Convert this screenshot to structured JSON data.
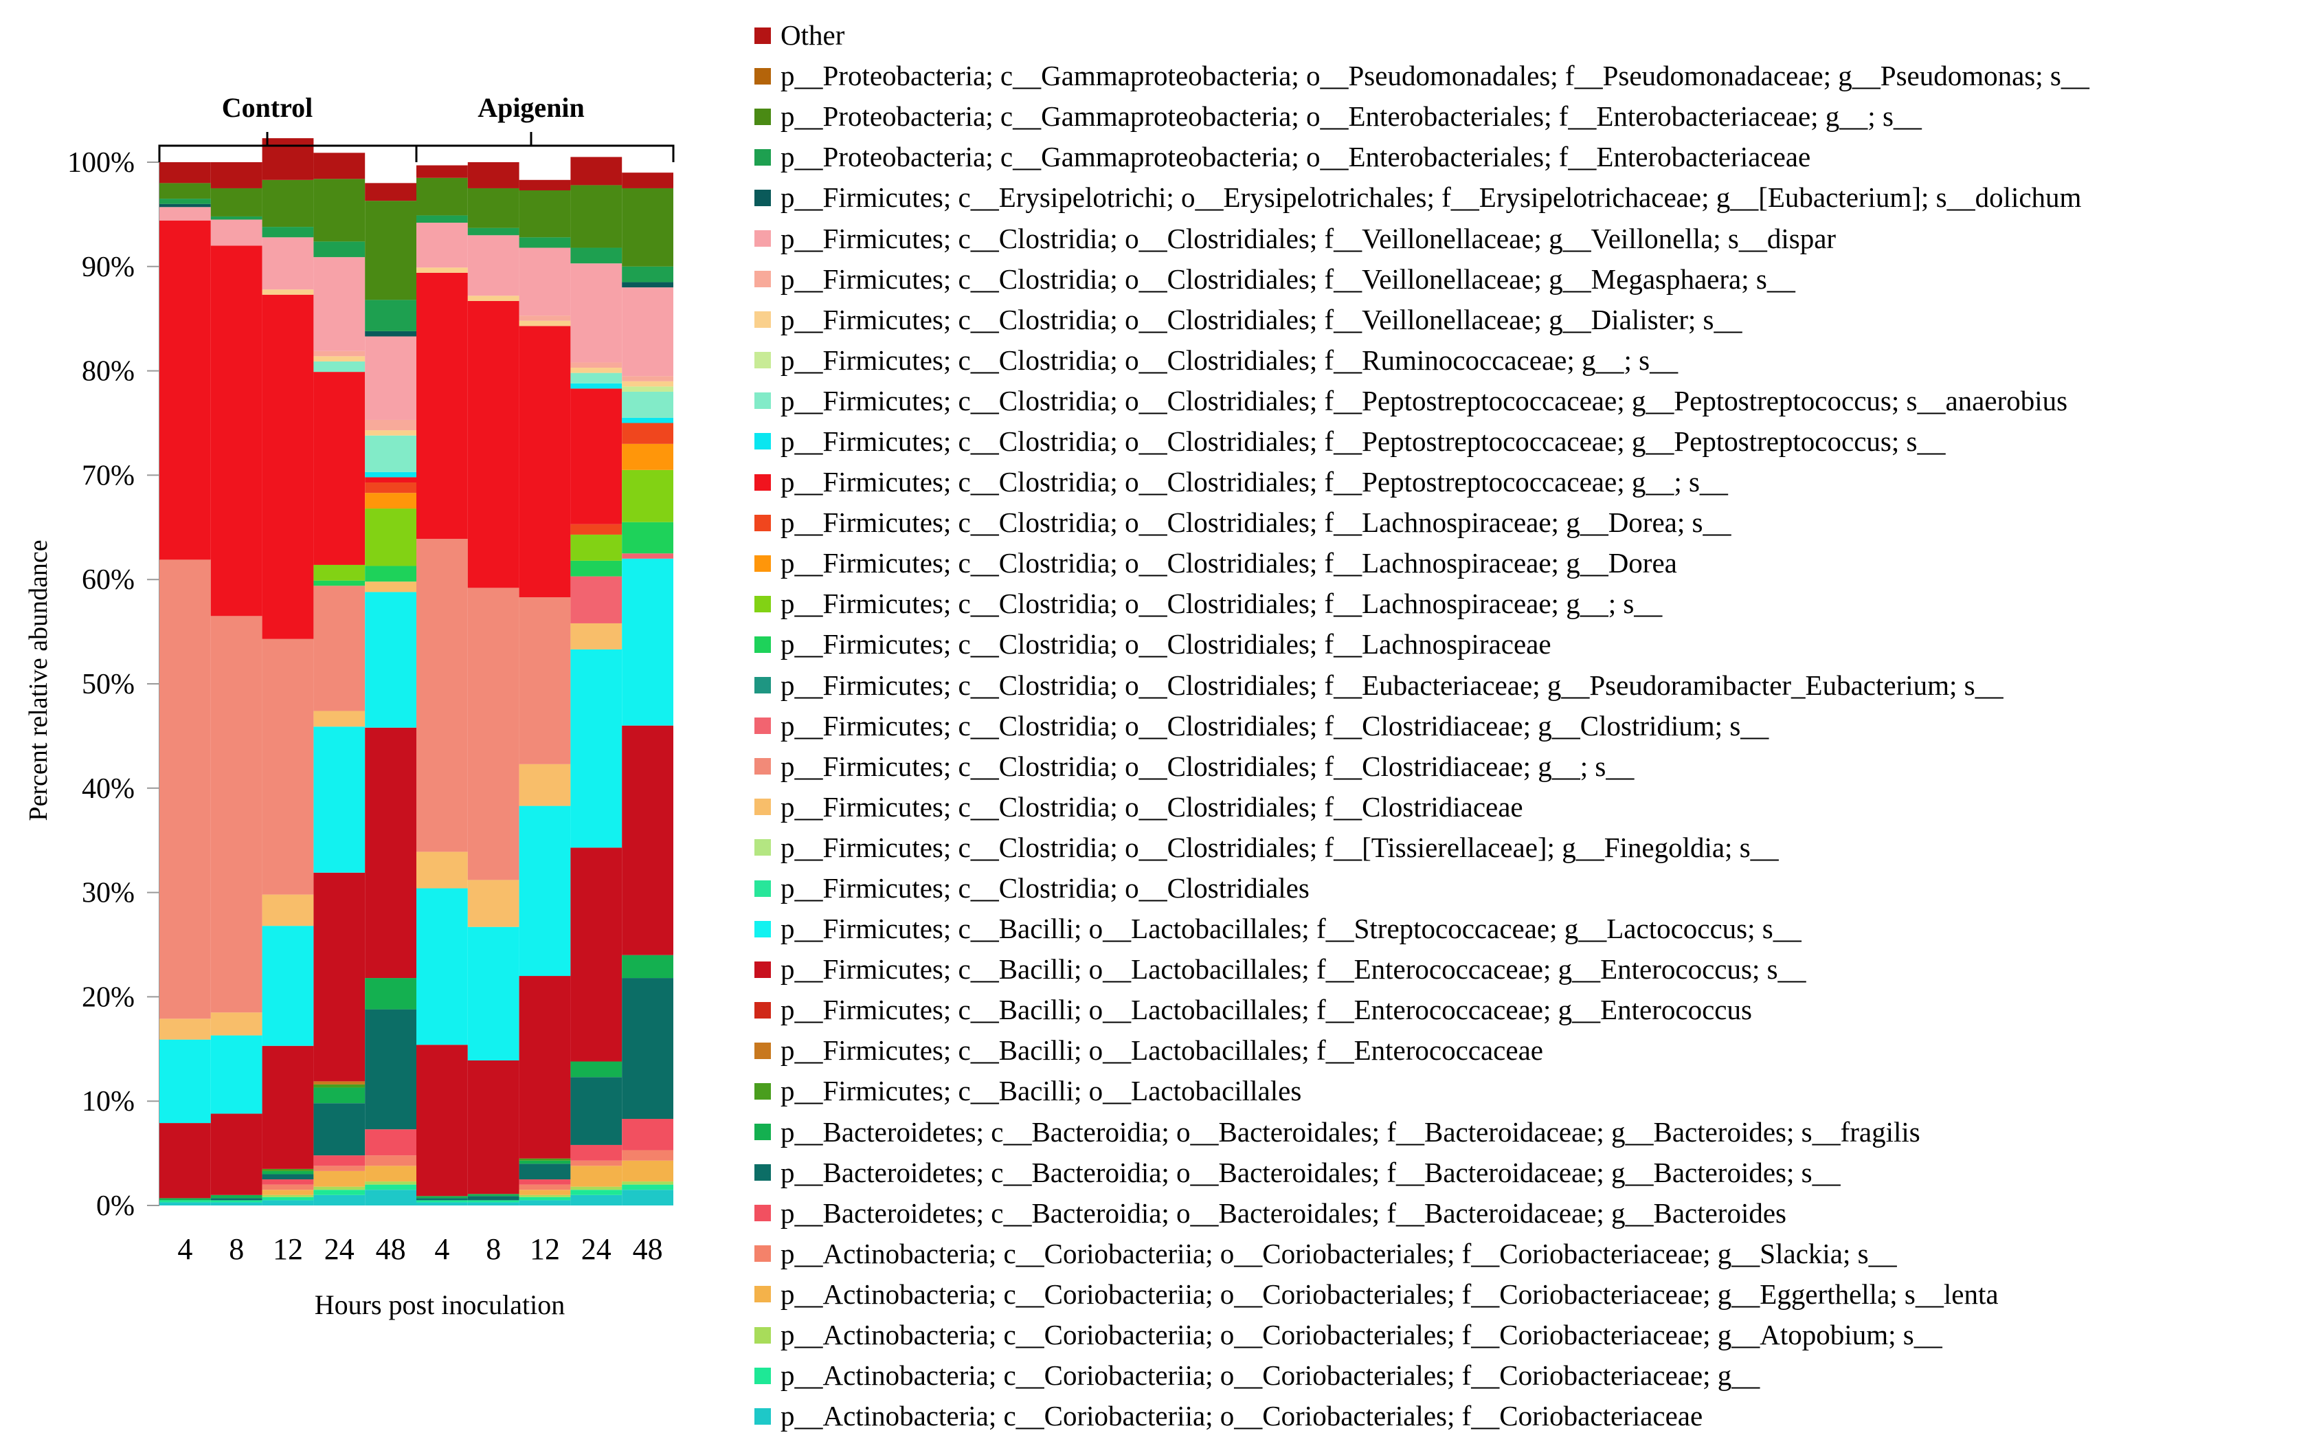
{
  "chart_data": {
    "type": "bar",
    "stacked": true,
    "ylabel": "Percent relative abundance",
    "xlabel": "Hours post inoculation",
    "ylim": [
      0,
      100
    ],
    "yticks": [
      "0%",
      "10%",
      "20%",
      "30%",
      "40%",
      "50%",
      "60%",
      "70%",
      "80%",
      "90%",
      "100%"
    ],
    "groups": [
      {
        "label": "Control",
        "categories": [
          "4",
          "8",
          "12",
          "24",
          "48"
        ]
      },
      {
        "label": "Apigenin",
        "categories": [
          "4",
          "8",
          "12",
          "24",
          "48"
        ]
      }
    ],
    "categories": [
      "4",
      "8",
      "12",
      "24",
      "48",
      "4",
      "8",
      "12",
      "24",
      "48"
    ],
    "legend_position": "right",
    "series": [
      {
        "name": "p__Actinobacteria; c__Coriobacteriia; o__Coriobacteriales; f__Coriobacteriaceae",
        "color": "#1ec8c8",
        "values": [
          0.3,
          0.3,
          0.5,
          1.0,
          1.5,
          0.3,
          0.3,
          0.5,
          1.0,
          1.5
        ]
      },
      {
        "name": "p__Actinobacteria; c__Coriobacteriia; o__Coriobacteriales; f__Coriobacteriaceae; g__",
        "color": "#1ee896",
        "values": [
          0.2,
          0.2,
          0.3,
          0.5,
          0.5,
          0.2,
          0.2,
          0.3,
          0.5,
          0.5
        ]
      },
      {
        "name": "p__Actinobacteria; c__Coriobacteriia; o__Coriobacteriales; f__Coriobacteriaceae; g__Atopobium; s__",
        "color": "#a8dc5a",
        "values": [
          0.0,
          0.0,
          0.2,
          0.3,
          0.3,
          0.0,
          0.0,
          0.2,
          0.3,
          0.3
        ]
      },
      {
        "name": "p__Actinobacteria; c__Coriobacteriia; o__Coriobacteriales; f__Coriobacteriaceae; g__Eggerthella; s__lenta",
        "color": "#f4b24a",
        "values": [
          0.0,
          0.0,
          0.5,
          1.5,
          1.5,
          0.0,
          0.0,
          0.5,
          2.0,
          2.0
        ]
      },
      {
        "name": "p__Actinobacteria; c__Coriobacteriia; o__Coriobacteriales; f__Coriobacteriaceae; g__Slackia; s__",
        "color": "#f4826a",
        "values": [
          0.0,
          0.0,
          0.5,
          0.5,
          1.0,
          0.0,
          0.0,
          0.5,
          0.5,
          1.0
        ]
      },
      {
        "name": "p__Bacteroidetes; c__Bacteroidia; o__Bacteroidales; f__Bacteroidaceae; g__Bacteroides",
        "color": "#f25060",
        "values": [
          0.0,
          0.0,
          0.5,
          1.0,
          2.5,
          0.0,
          0.0,
          0.5,
          1.5,
          3.0
        ]
      },
      {
        "name": "p__Bacteroidetes; c__Bacteroidia; o__Bacteroidales; f__Bacteroidaceae; g__Bacteroides; s__",
        "color": "#0c6e66",
        "values": [
          0.0,
          0.2,
          0.5,
          5.0,
          11.5,
          0.2,
          0.4,
          1.5,
          6.5,
          13.5
        ]
      },
      {
        "name": "p__Bacteroidetes; c__Bacteroidia; o__Bacteroidales; f__Bacteroidaceae; g__Bacteroides; s__fragilis",
        "color": "#14b050",
        "values": [
          0.2,
          0.3,
          0.3,
          1.5,
          3.0,
          0.2,
          0.2,
          0.3,
          1.5,
          2.2
        ]
      },
      {
        "name": "p__Firmicutes; c__Bacilli; o__Lactobacillales",
        "color": "#4a9e1e",
        "values": [
          0.0,
          0.0,
          0.2,
          0.3,
          0.0,
          0.0,
          0.0,
          0.2,
          0.0,
          0.0
        ]
      },
      {
        "name": "p__Firmicutes; c__Bacilli; o__Lactobacillales; f__Enterococcaceae",
        "color": "#c8781e",
        "values": [
          0.0,
          0.0,
          0.0,
          0.3,
          0.0,
          0.0,
          0.0,
          0.0,
          0.0,
          0.0
        ]
      },
      {
        "name": "p__Firmicutes; c__Bacilli; o__Lactobacillales; f__Enterococcaceae; g__Enterococcus",
        "color": "#d02818",
        "values": [
          0.0,
          0.0,
          0.0,
          0.0,
          0.0,
          0.0,
          0.0,
          0.0,
          0.0,
          0.0
        ]
      },
      {
        "name": "p__Firmicutes; c__Bacilli; o__Lactobacillales; f__Enterococcaceae; g__Enterococcus; s__",
        "color": "#c8101e",
        "values": [
          7.2,
          7.8,
          11.8,
          20.0,
          24.0,
          14.5,
          12.8,
          17.5,
          20.5,
          22.0
        ]
      },
      {
        "name": "p__Firmicutes; c__Bacilli; o__Lactobacillales; f__Streptococcaceae; g__Lactococcus; s__",
        "color": "#12f2f0",
        "values": [
          8.0,
          7.5,
          11.5,
          14.0,
          13.0,
          15.0,
          12.8,
          16.3,
          19.0,
          16.0
        ]
      },
      {
        "name": "p__Firmicutes; c__Clostridia; o__Clostridiales",
        "color": "#28e69a",
        "values": [
          0.0,
          0.0,
          0.0,
          0.0,
          0.0,
          0.0,
          0.0,
          0.0,
          0.0,
          0.0
        ]
      },
      {
        "name": "p__Firmicutes; c__Clostridia; o__Clostridiales; f__[Tissierellaceae]; g__Finegoldia; s__",
        "color": "#b4e682",
        "values": [
          0.0,
          0.0,
          0.0,
          0.0,
          0.0,
          0.0,
          0.0,
          0.0,
          0.0,
          0.0
        ]
      },
      {
        "name": "p__Firmicutes; c__Clostridia; o__Clostridiales; f__Clostridiaceae",
        "color": "#f8be6a",
        "values": [
          2.0,
          2.2,
          3.0,
          1.5,
          1.0,
          3.5,
          4.5,
          4.0,
          2.5,
          0.0
        ]
      },
      {
        "name": "p__Firmicutes; c__Clostridia; o__Clostridiales; f__Clostridiaceae; g__; s__",
        "color": "#f28a78",
        "values": [
          44.0,
          38.0,
          24.5,
          12.0,
          0.0,
          30.0,
          28.0,
          16.0,
          0.0,
          0.0
        ]
      },
      {
        "name": "p__Firmicutes; c__Clostridia; o__Clostridiales; f__Clostridiaceae; g__Clostridium; s__",
        "color": "#f26470",
        "values": [
          0.0,
          0.0,
          0.0,
          0.0,
          0.0,
          0.0,
          0.0,
          0.0,
          4.5,
          0.5
        ]
      },
      {
        "name": "p__Firmicutes; c__Clostridia; o__Clostridiales; f__Eubacteriaceae; g__Pseudoramibacter_Eubacterium; s__",
        "color": "#1e9682",
        "values": [
          0.0,
          0.0,
          0.0,
          0.0,
          0.0,
          0.0,
          0.0,
          0.0,
          0.0,
          0.0
        ]
      },
      {
        "name": "p__Firmicutes; c__Clostridia; o__Clostridiales; f__Lachnospiraceae",
        "color": "#1ed25a",
        "values": [
          0.0,
          0.0,
          0.0,
          0.5,
          1.5,
          0.0,
          0.0,
          0.0,
          1.5,
          3.0
        ]
      },
      {
        "name": "p__Firmicutes; c__Clostridia; o__Clostridiales; f__Lachnospiraceae; g__; s__",
        "color": "#82d214",
        "values": [
          0.0,
          0.0,
          0.0,
          1.5,
          5.5,
          0.0,
          0.0,
          0.0,
          2.5,
          5.0
        ]
      },
      {
        "name": "p__Firmicutes; c__Clostridia; o__Clostridiales; f__Lachnospiraceae; g__Dorea",
        "color": "#ff960a",
        "values": [
          0.0,
          0.0,
          0.0,
          0.0,
          1.5,
          0.0,
          0.0,
          0.0,
          0.0,
          2.5
        ]
      },
      {
        "name": "p__Firmicutes; c__Clostridia; o__Clostridiales; f__Lachnospiraceae; g__Dorea; s__",
        "color": "#f0461e",
        "values": [
          0.0,
          0.0,
          0.0,
          0.0,
          1.0,
          0.0,
          0.0,
          0.0,
          1.0,
          2.0
        ]
      },
      {
        "name": "p__Firmicutes; c__Clostridia; o__Clostridiales; f__Peptostreptococcaceae; g__; s__",
        "color": "#f0141e",
        "values": [
          32.5,
          35.5,
          33.0,
          18.5,
          0.5,
          25.5,
          27.5,
          26.0,
          13.0,
          0.0
        ]
      },
      {
        "name": "p__Firmicutes; c__Clostridia; o__Clostridiales; f__Peptostreptococcaceae; g__Peptostreptococcus; s__",
        "color": "#0ae6f0",
        "values": [
          0.0,
          0.0,
          0.0,
          0.0,
          0.5,
          0.0,
          0.0,
          0.0,
          0.5,
          0.5
        ]
      },
      {
        "name": "p__Firmicutes; c__Clostridia; o__Clostridiales; f__Peptostreptococcaceae; g__Peptostreptococcus; s__anaerobius",
        "color": "#82ebc8",
        "values": [
          0.0,
          0.0,
          0.0,
          1.0,
          3.5,
          0.0,
          0.0,
          0.0,
          1.0,
          2.5
        ]
      },
      {
        "name": "p__Firmicutes; c__Clostridia; o__Clostridiales; f__Ruminococcaceae; g__; s__",
        "color": "#c8eb96",
        "values": [
          0.0,
          0.0,
          0.0,
          0.0,
          0.0,
          0.0,
          0.0,
          0.0,
          0.0,
          0.5
        ]
      },
      {
        "name": "p__Firmicutes; c__Clostridia; o__Clostridiales; f__Veillonellaceae; g__Dialister; s__",
        "color": "#fad08c",
        "values": [
          0.0,
          0.0,
          0.5,
          0.5,
          0.5,
          0.5,
          0.5,
          0.5,
          0.5,
          0.5
        ]
      },
      {
        "name": "p__Firmicutes; c__Clostridia; o__Clostridiales; f__Veillonellaceae; g__Megasphaera; s__",
        "color": "#f8aa9a",
        "values": [
          0.0,
          0.0,
          0.0,
          0.5,
          1.0,
          0.0,
          0.0,
          0.5,
          0.5,
          0.5
        ]
      },
      {
        "name": "p__Firmicutes; c__Clostridia; o__Clostridiales; f__Veillonellaceae; g__Veillonella; s__dispar",
        "color": "#f7a2a8",
        "values": [
          1.3,
          2.5,
          5.0,
          9.0,
          8.0,
          4.3,
          5.8,
          6.5,
          9.5,
          8.5
        ]
      },
      {
        "name": "p__Firmicutes; c__Erysipelotrichi; o__Erysipelotrichales; f__Erysipelotrichaceae; g__[Eubacterium]; s__dolichum",
        "color": "#0a5a5a",
        "values": [
          0.3,
          0.0,
          0.0,
          0.0,
          0.5,
          0.0,
          0.0,
          0.0,
          0.0,
          0.5
        ]
      },
      {
        "name": "p__Proteobacteria; c__Gammaproteobacteria; o__Enterobacteriales; f__Enterobacteriaceae",
        "color": "#1ea050",
        "values": [
          0.5,
          0.3,
          1.0,
          1.5,
          3.0,
          0.7,
          0.7,
          1.0,
          1.5,
          1.5
        ]
      },
      {
        "name": "p__Proteobacteria; c__Gammaproteobacteria; o__Enterobacteriales; f__Enterobacteriaceae; g__; s__",
        "color": "#4a8a14",
        "values": [
          1.5,
          2.7,
          4.5,
          6.0,
          9.5,
          3.6,
          3.8,
          4.5,
          6.0,
          7.5
        ]
      },
      {
        "name": "p__Proteobacteria; c__Gammaproteobacteria; o__Pseudomonadales; f__Pseudomonadaceae; g__Pseudomonas; s__",
        "color": "#b4640a",
        "values": [
          0.0,
          0.0,
          0.0,
          0.0,
          0.0,
          0.0,
          0.0,
          0.0,
          0.0,
          0.0
        ]
      },
      {
        "name": "Other",
        "color": "#b41414",
        "values": [
          2.0,
          2.5,
          4.0,
          2.5,
          1.7,
          1.2,
          2.5,
          1.0,
          2.7,
          1.5
        ]
      }
    ]
  }
}
